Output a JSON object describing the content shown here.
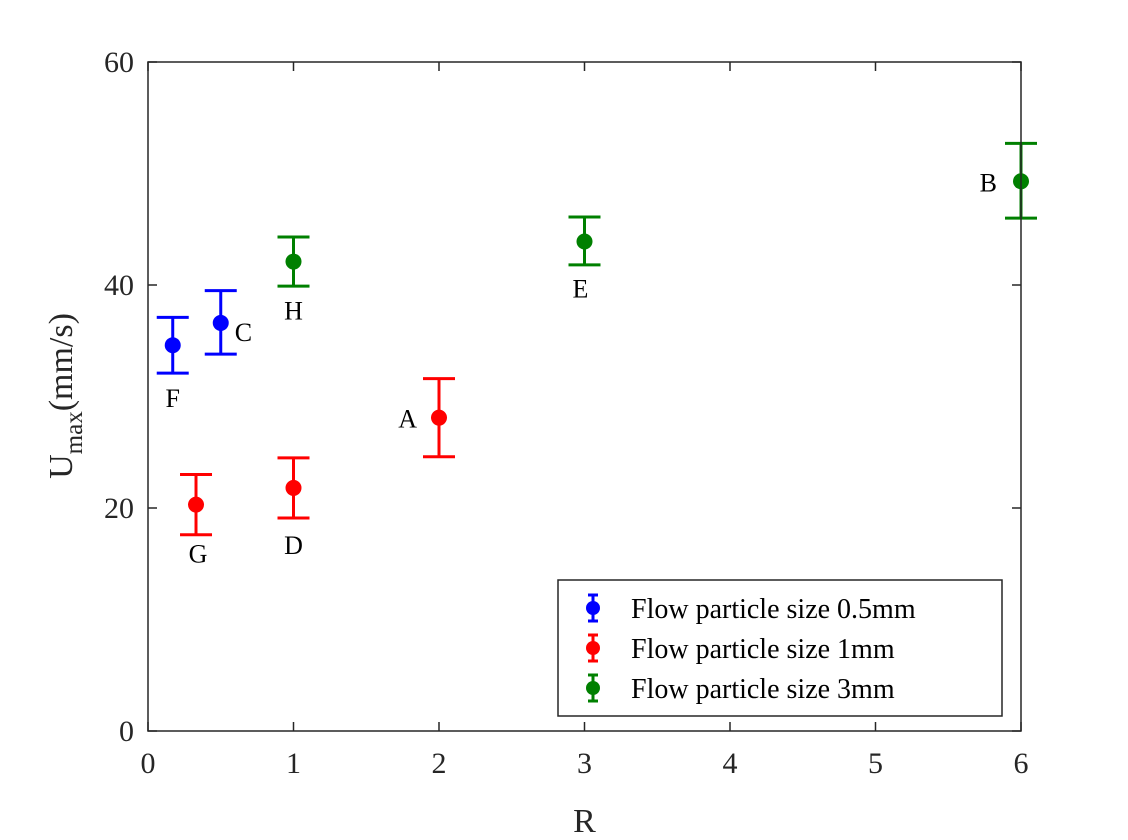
{
  "chart_data": {
    "type": "scatter",
    "title": "",
    "xlabel": "R",
    "ylabel_main": "U",
    "ylabel_sub": "max",
    "ylabel_units": "(mm/s)",
    "xlim": [
      0,
      6
    ],
    "ylim": [
      0,
      60
    ],
    "xticks": [
      0,
      1,
      2,
      3,
      4,
      5,
      6
    ],
    "yticks": [
      0,
      20,
      40,
      60
    ],
    "grid": false,
    "legend_position": "bottom-right",
    "series": [
      {
        "name": "Flow particle size 0.5mm",
        "color": "#0000ff",
        "points": [
          {
            "label": "F",
            "x": 0.17,
            "y": 34.6,
            "err_low": 32.1,
            "err_high": 37.1
          },
          {
            "label": "C",
            "x": 0.5,
            "y": 36.6,
            "err_low": 33.8,
            "err_high": 39.5
          }
        ]
      },
      {
        "name": "Flow particle size 1mm",
        "color": "#ff0000",
        "points": [
          {
            "label": "G",
            "x": 0.33,
            "y": 20.3,
            "err_low": 17.6,
            "err_high": 23.0
          },
          {
            "label": "D",
            "x": 1.0,
            "y": 21.8,
            "err_low": 19.1,
            "err_high": 24.5
          },
          {
            "label": "A",
            "x": 2.0,
            "y": 28.1,
            "err_low": 24.6,
            "err_high": 31.6
          }
        ]
      },
      {
        "name": "Flow particle size 3mm",
        "color": "#008000",
        "points": [
          {
            "label": "H",
            "x": 1.0,
            "y": 42.1,
            "err_low": 39.9,
            "err_high": 44.3
          },
          {
            "label": "E",
            "x": 3.0,
            "y": 43.9,
            "err_low": 41.8,
            "err_high": 46.1
          },
          {
            "label": "B",
            "x": 6.0,
            "y": 49.3,
            "err_low": 46.0,
            "err_high": 52.7
          }
        ]
      }
    ]
  }
}
